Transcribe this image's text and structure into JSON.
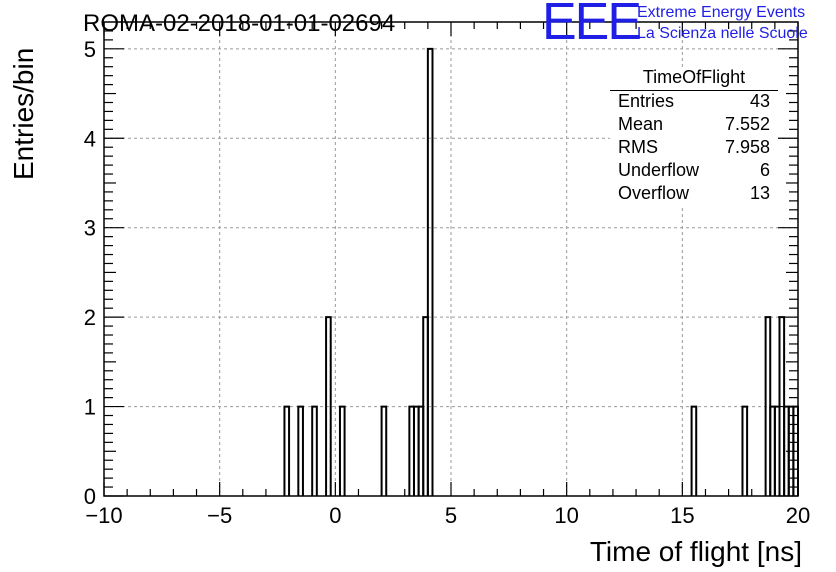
{
  "header": {
    "title": "ROMA-02-2018-01-01-02694"
  },
  "logo": {
    "mark": "EEE",
    "line1": "Extreme Energy Events",
    "line2": "La Scienza nelle Scuole",
    "color": "#1f1fe6"
  },
  "stats": {
    "title": "TimeOfFlight",
    "rows": [
      {
        "label": "Entries",
        "value": "43"
      },
      {
        "label": "Mean",
        "value": "7.552"
      },
      {
        "label": "RMS",
        "value": "7.958"
      },
      {
        "label": "Underflow",
        "value": "6"
      },
      {
        "label": "Overflow",
        "value": "13"
      }
    ]
  },
  "chart_data": {
    "type": "histogram",
    "title": "ROMA-02-2018-01-01-02694",
    "xlabel": "Time of flight [ns]",
    "ylabel": "Entries/bin",
    "xlim": [
      -10,
      20
    ],
    "ylim": [
      0,
      5.3
    ],
    "bin_width": 0.2,
    "x_ticks": [
      -10,
      -5,
      0,
      5,
      10,
      15,
      20
    ],
    "x_tick_labels": [
      "−10",
      "−5",
      "0",
      "5",
      "10",
      "15",
      "20"
    ],
    "y_ticks": [
      0,
      1,
      2,
      3,
      4,
      5
    ],
    "y_tick_labels": [
      "0",
      "1",
      "2",
      "3",
      "4",
      "5"
    ],
    "grid": true,
    "line_color": "#000000",
    "bins": [
      {
        "x": -2.2,
        "count": 1
      },
      {
        "x": -1.6,
        "count": 1
      },
      {
        "x": -1.0,
        "count": 1
      },
      {
        "x": -0.4,
        "count": 2
      },
      {
        "x": 0.2,
        "count": 1
      },
      {
        "x": 2.0,
        "count": 1
      },
      {
        "x": 3.2,
        "count": 1
      },
      {
        "x": 3.4,
        "count": 1
      },
      {
        "x": 3.6,
        "count": 1
      },
      {
        "x": 3.8,
        "count": 2
      },
      {
        "x": 4.0,
        "count": 5
      },
      {
        "x": 15.4,
        "count": 1
      },
      {
        "x": 17.6,
        "count": 1
      },
      {
        "x": 18.6,
        "count": 2
      },
      {
        "x": 18.8,
        "count": 1
      },
      {
        "x": 19.0,
        "count": 1
      },
      {
        "x": 19.2,
        "count": 2
      },
      {
        "x": 19.4,
        "count": 1
      },
      {
        "x": 19.6,
        "count": 1
      },
      {
        "x": 19.8,
        "count": 1
      }
    ]
  }
}
